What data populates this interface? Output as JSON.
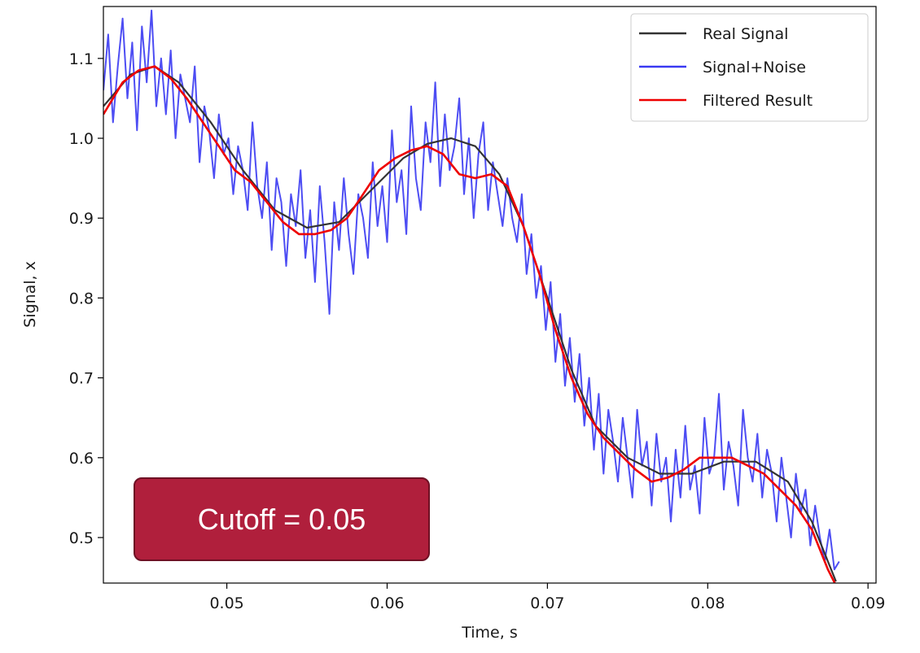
{
  "annotation": {
    "text": "Cutoff = 0.05"
  },
  "colors": {
    "real": "#333333",
    "noisy": "#3a3af2",
    "filtered": "#ee0000",
    "callout": "#b01f3c"
  },
  "chart_data": {
    "type": "line",
    "title": "",
    "xlabel": "Time, s",
    "ylabel": "Signal, x",
    "xlim": [
      0.0423,
      0.0905
    ],
    "ylim": [
      0.443,
      1.165
    ],
    "x_ticks": [
      0.05,
      0.06,
      0.07,
      0.08,
      0.09
    ],
    "x_tick_labels": [
      "0.05",
      "0.06",
      "0.07",
      "0.08",
      "0.09"
    ],
    "y_ticks": [
      0.5,
      0.6,
      0.7,
      0.8,
      0.9,
      1.0,
      1.1
    ],
    "y_tick_labels": [
      "0.5",
      "0.6",
      "0.7",
      "0.8",
      "0.9",
      "1.0",
      "1.1"
    ],
    "grid": false,
    "legend_position": "top-right",
    "series": [
      {
        "name": "Real Signal",
        "color": "#333333",
        "x": [
          0.0423,
          0.044,
          0.0455,
          0.047,
          0.049,
          0.051,
          0.053,
          0.055,
          0.057,
          0.059,
          0.061,
          0.0625,
          0.064,
          0.0655,
          0.067,
          0.0685,
          0.07,
          0.0715,
          0.073,
          0.075,
          0.077,
          0.079,
          0.081,
          0.083,
          0.085,
          0.0865,
          0.088
        ],
        "values": [
          1.04,
          1.08,
          1.09,
          1.07,
          1.02,
          0.96,
          0.91,
          0.888,
          0.895,
          0.935,
          0.975,
          0.993,
          1.0,
          0.99,
          0.955,
          0.89,
          0.8,
          0.71,
          0.64,
          0.6,
          0.58,
          0.58,
          0.595,
          0.595,
          0.57,
          0.52,
          0.445
        ]
      },
      {
        "name": "Signal+Noise",
        "color": "#3a3af2",
        "x": [
          0.0423,
          0.0426,
          0.0429,
          0.0432,
          0.0435,
          0.0438,
          0.0441,
          0.0444,
          0.0447,
          0.045,
          0.0453,
          0.0456,
          0.0459,
          0.0462,
          0.0465,
          0.0468,
          0.0471,
          0.0474,
          0.0477,
          0.048,
          0.0483,
          0.0486,
          0.0489,
          0.0492,
          0.0495,
          0.0498,
          0.0501,
          0.0504,
          0.0507,
          0.051,
          0.0513,
          0.0516,
          0.0519,
          0.0522,
          0.0525,
          0.0528,
          0.0531,
          0.0534,
          0.0537,
          0.054,
          0.0543,
          0.0546,
          0.0549,
          0.0552,
          0.0555,
          0.0558,
          0.0561,
          0.0564,
          0.0567,
          0.057,
          0.0573,
          0.0576,
          0.0579,
          0.0582,
          0.0585,
          0.0588,
          0.0591,
          0.0594,
          0.0597,
          0.06,
          0.0603,
          0.0606,
          0.0609,
          0.0612,
          0.0615,
          0.0618,
          0.0621,
          0.0624,
          0.0627,
          0.063,
          0.0633,
          0.0636,
          0.0639,
          0.0642,
          0.0645,
          0.0648,
          0.0651,
          0.0654,
          0.0657,
          0.066,
          0.0663,
          0.0666,
          0.0669,
          0.0672,
          0.0675,
          0.0678,
          0.0681,
          0.0684,
          0.0687,
          0.069,
          0.0693,
          0.0696,
          0.0699,
          0.0702,
          0.0705,
          0.0708,
          0.0711,
          0.0714,
          0.0717,
          0.072,
          0.0723,
          0.0726,
          0.0729,
          0.0732,
          0.0735,
          0.0738,
          0.0741,
          0.0744,
          0.0747,
          0.075,
          0.0753,
          0.0756,
          0.0759,
          0.0762,
          0.0765,
          0.0768,
          0.0771,
          0.0774,
          0.0777,
          0.078,
          0.0783,
          0.0786,
          0.0789,
          0.0792,
          0.0795,
          0.0798,
          0.0801,
          0.0804,
          0.0807,
          0.081,
          0.0813,
          0.0816,
          0.0819,
          0.0822,
          0.0825,
          0.0828,
          0.0831,
          0.0834,
          0.0837,
          0.084,
          0.0843,
          0.0846,
          0.0849,
          0.0852,
          0.0855,
          0.0858,
          0.0861,
          0.0864,
          0.0867,
          0.087,
          0.0873,
          0.0876,
          0.0879,
          0.0882
        ],
        "values": [
          1.06,
          1.13,
          1.02,
          1.09,
          1.15,
          1.05,
          1.12,
          1.01,
          1.14,
          1.07,
          1.16,
          1.04,
          1.1,
          1.03,
          1.11,
          1.0,
          1.08,
          1.05,
          1.02,
          1.09,
          0.97,
          1.04,
          1.01,
          0.95,
          1.03,
          0.98,
          1.0,
          0.93,
          0.99,
          0.96,
          0.91,
          1.02,
          0.94,
          0.9,
          0.97,
          0.86,
          0.95,
          0.92,
          0.84,
          0.93,
          0.89,
          0.96,
          0.85,
          0.91,
          0.82,
          0.94,
          0.87,
          0.78,
          0.92,
          0.86,
          0.95,
          0.88,
          0.83,
          0.93,
          0.9,
          0.85,
          0.97,
          0.89,
          0.94,
          0.87,
          1.01,
          0.92,
          0.96,
          0.88,
          1.04,
          0.95,
          0.91,
          1.02,
          0.97,
          1.07,
          0.94,
          1.03,
          0.96,
          0.99,
          1.05,
          0.93,
          1.0,
          0.9,
          0.98,
          1.02,
          0.91,
          0.97,
          0.93,
          0.89,
          0.95,
          0.9,
          0.87,
          0.93,
          0.83,
          0.88,
          0.8,
          0.84,
          0.76,
          0.82,
          0.72,
          0.78,
          0.69,
          0.75,
          0.67,
          0.73,
          0.64,
          0.7,
          0.61,
          0.68,
          0.58,
          0.66,
          0.62,
          0.57,
          0.65,
          0.6,
          0.55,
          0.66,
          0.59,
          0.62,
          0.54,
          0.63,
          0.57,
          0.6,
          0.52,
          0.61,
          0.55,
          0.64,
          0.56,
          0.59,
          0.53,
          0.65,
          0.58,
          0.6,
          0.68,
          0.56,
          0.62,
          0.59,
          0.54,
          0.66,
          0.6,
          0.57,
          0.63,
          0.55,
          0.61,
          0.58,
          0.52,
          0.6,
          0.55,
          0.5,
          0.58,
          0.53,
          0.56,
          0.49,
          0.54,
          0.5,
          0.47,
          0.51,
          0.46,
          0.47
        ]
      },
      {
        "name": "Filtered Result",
        "color": "#ee0000",
        "x": [
          0.0423,
          0.0435,
          0.0445,
          0.0455,
          0.0465,
          0.0475,
          0.0485,
          0.0495,
          0.0505,
          0.0515,
          0.0525,
          0.0535,
          0.0545,
          0.0555,
          0.0565,
          0.0575,
          0.0585,
          0.0595,
          0.0605,
          0.0615,
          0.0625,
          0.0635,
          0.0645,
          0.0655,
          0.0665,
          0.0675,
          0.0685,
          0.0695,
          0.0705,
          0.0715,
          0.0725,
          0.0735,
          0.0745,
          0.0755,
          0.0765,
          0.0775,
          0.0785,
          0.0795,
          0.0805,
          0.0815,
          0.0825,
          0.0835,
          0.0845,
          0.0855,
          0.0865,
          0.0875,
          0.088
        ],
        "values": [
          1.03,
          1.07,
          1.085,
          1.09,
          1.075,
          1.05,
          1.02,
          0.99,
          0.96,
          0.945,
          0.92,
          0.895,
          0.88,
          0.88,
          0.885,
          0.9,
          0.93,
          0.96,
          0.975,
          0.985,
          0.99,
          0.98,
          0.955,
          0.95,
          0.955,
          0.94,
          0.89,
          0.83,
          0.76,
          0.7,
          0.655,
          0.625,
          0.605,
          0.585,
          0.57,
          0.575,
          0.585,
          0.6,
          0.6,
          0.6,
          0.59,
          0.58,
          0.56,
          0.54,
          0.51,
          0.46,
          0.44
        ]
      }
    ]
  }
}
